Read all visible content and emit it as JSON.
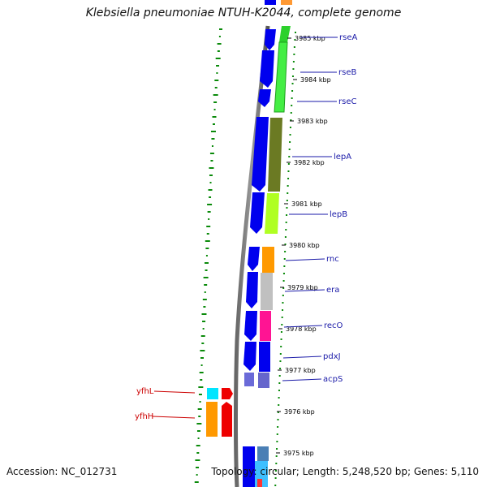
{
  "title": "Klebsiella pneumoniae NTUH-K2044, complete genome",
  "footer": {
    "accession": "Accession: NC_012731",
    "topology": "Topology: circular; Length: 5,248,520 bp; Genes: 5,110"
  },
  "ticks": [
    {
      "label": "3985 kbp",
      "pos": 3985.0
    },
    {
      "label": "3984 kbp",
      "pos": 3984.0
    },
    {
      "label": "3983 kbp",
      "pos": 3983.0
    },
    {
      "label": "3982 kbp",
      "pos": 3982.0
    },
    {
      "label": "3981 kbp",
      "pos": 3981.0
    },
    {
      "label": "3980 kbp",
      "pos": 3980.0
    },
    {
      "label": "3979 kbp",
      "pos": 3979.0
    },
    {
      "label": "3978 kbp",
      "pos": 3978.0
    },
    {
      "label": "3977 kbp",
      "pos": 3977.0
    },
    {
      "label": "3976 kbp",
      "pos": 3976.0
    },
    {
      "label": "3975 kbp",
      "pos": 3975.0
    }
  ],
  "genes": [
    {
      "name": "rseA",
      "color": "#1a1aa8",
      "cog_color": "#33cc33"
    },
    {
      "name": "rseB",
      "color": "#1a1aa8",
      "cog_color": "#33cc33"
    },
    {
      "name": "rseC",
      "color": "#1a1aa8",
      "cog_color": "#33cc33"
    },
    {
      "name": "lepA",
      "color": "#1a1aa8",
      "cog_color": "#667a1e"
    },
    {
      "name": "lepB",
      "color": "#1a1aa8",
      "cog_color": "#aaff22"
    },
    {
      "name": "rnc",
      "color": "#1a1aa8",
      "cog_color": "#ff9900"
    },
    {
      "name": "era",
      "color": "#1a1aa8",
      "cog_color": "#bbbbbb"
    },
    {
      "name": "recO",
      "color": "#1a1aa8",
      "cog_color": "#ff1493"
    },
    {
      "name": "pdxJ",
      "color": "#1a1aa8",
      "cog_color": "#0000ff"
    },
    {
      "name": "acpS",
      "color": "#1a1aa8",
      "cog_color": "#6666cc"
    },
    {
      "name": "yfhL",
      "color": "#cc0000",
      "cog_color": "#00e5ff"
    },
    {
      "name": "yfhH",
      "color": "#cc0000",
      "cog_color": "#ff9900"
    }
  ]
}
